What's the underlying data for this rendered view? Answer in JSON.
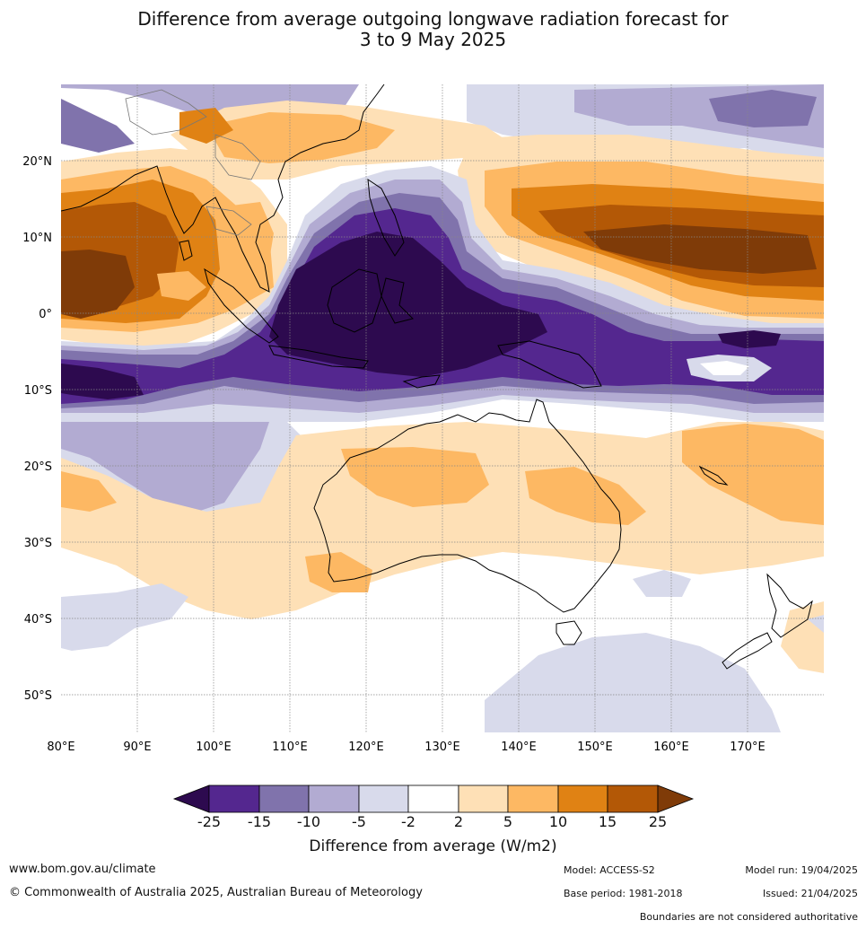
{
  "title": {
    "line1": "Difference from average outgoing longwave radiation forecast for",
    "line2": "3 to 9 May 2025"
  },
  "map": {
    "lat_labels": [
      "20°N",
      "10°N",
      "0°",
      "10°S",
      "20°S",
      "30°S",
      "40°S",
      "50°S"
    ],
    "lon_labels": [
      "80°E",
      "90°E",
      "100°E",
      "110°E",
      "120°E",
      "130°E",
      "140°E",
      "150°E",
      "160°E",
      "170°E"
    ],
    "lat_range": [
      -55,
      30
    ],
    "lon_range": [
      80,
      180
    ]
  },
  "colorbar": {
    "label": "Difference from average (W/m2)",
    "ticks": [
      "-25",
      "-15",
      "-10",
      "-5",
      "-2",
      "2",
      "5",
      "10",
      "15",
      "25"
    ],
    "colors": {
      "lt_-25": "#2d0a4f",
      "-25_-15": "#54278f",
      "-15_-10": "#8073ac",
      "-10_-5": "#b2abd2",
      "-5_-2": "#d8daeb",
      "-2_2": "#ffffff",
      "2_5": "#fee0b6",
      "5_10": "#fdb863",
      "10_15": "#e08214",
      "15_25": "#b35806",
      "gt_25": "#7f3b08"
    }
  },
  "footer": {
    "website": "www.bom.gov.au/climate",
    "copyright": "© Commonwealth of Australia 2025, Australian Bureau of Meteorology",
    "model": "Model: ACCESS-S2",
    "model_run": "Model run: 19/04/2025",
    "base_period": "Base period: 1981-2018",
    "issued": "Issued: 21/04/2025",
    "disclaimer": "Boundaries are not considered authoritative"
  }
}
